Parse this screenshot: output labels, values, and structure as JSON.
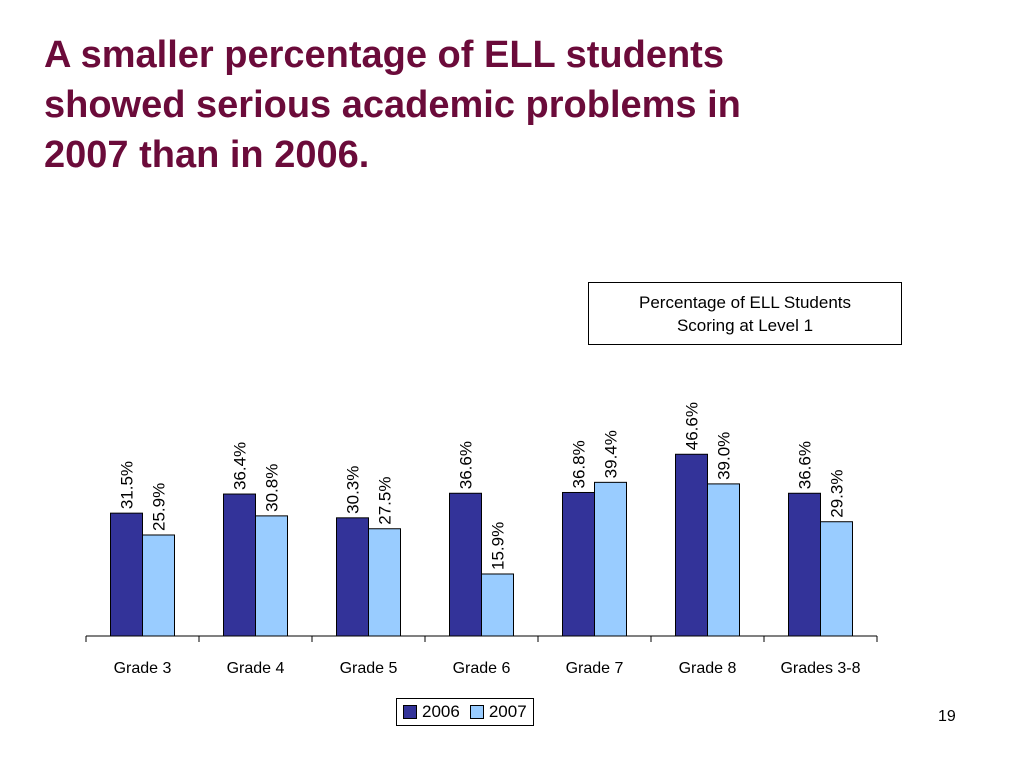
{
  "slide": {
    "title_lines": [
      "A smaller percentage of ELL students",
      "showed serious academic problems in",
      "2007 than in 2006."
    ],
    "page_number": "19"
  },
  "chart_data": {
    "type": "bar",
    "title_lines": [
      "Percentage of ELL Students",
      "Scoring at Level 1"
    ],
    "categories": [
      "Grade 3",
      "Grade 4",
      "Grade 5",
      "Grade 6",
      "Grade 7",
      "Grade 8",
      "Grades 3-8"
    ],
    "series": [
      {
        "name": "2006",
        "color": "#333399",
        "values": [
          31.5,
          36.4,
          30.3,
          36.6,
          36.8,
          46.6,
          36.6
        ],
        "labels": [
          "31.5%",
          "36.4%",
          "30.3%",
          "36.6%",
          "36.8%",
          "46.6%",
          "36.6%"
        ]
      },
      {
        "name": "2007",
        "color": "#99ccff",
        "values": [
          25.9,
          30.8,
          27.5,
          15.9,
          39.4,
          39.0,
          29.3
        ],
        "labels": [
          "25.9%",
          "30.8%",
          "27.5%",
          "15.9%",
          "39.4%",
          "39.0%",
          "29.3%"
        ]
      }
    ],
    "ylim": [
      0,
      100
    ],
    "grid": false,
    "legend_position": "bottom",
    "y_axis_visible": false
  }
}
